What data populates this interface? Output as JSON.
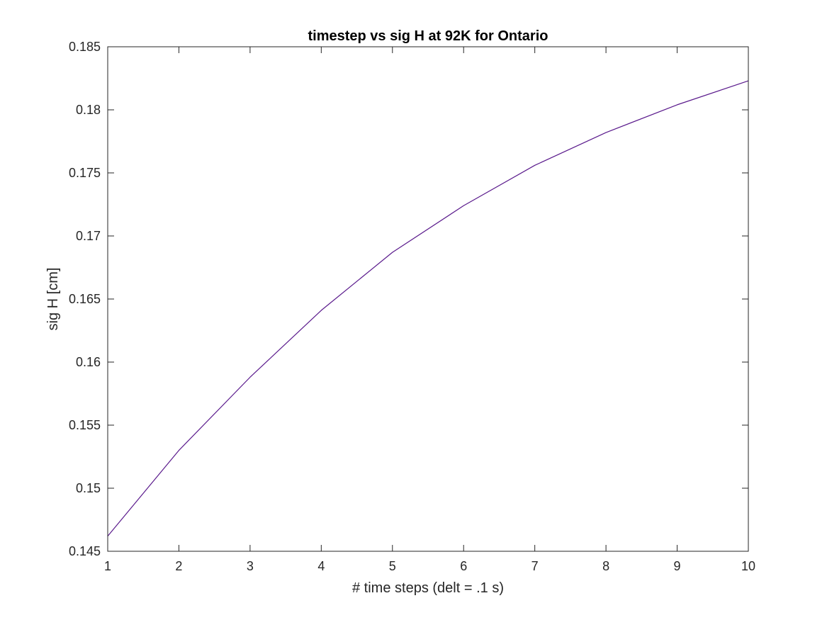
{
  "chart_data": {
    "type": "line",
    "title": "timestep vs sig H at 92K for Ontario",
    "xlabel": "# time steps (delt = .1 s)",
    "ylabel": "sig H [cm]",
    "xlim": [
      1,
      10
    ],
    "ylim": [
      0.145,
      0.185
    ],
    "xticks": [
      1,
      2,
      3,
      4,
      5,
      6,
      7,
      8,
      9,
      10
    ],
    "xtick_labels": [
      "1",
      "2",
      "3",
      "4",
      "5",
      "6",
      "7",
      "8",
      "9",
      "10"
    ],
    "yticks": [
      0.145,
      0.15,
      0.155,
      0.16,
      0.165,
      0.17,
      0.175,
      0.18,
      0.185
    ],
    "ytick_labels": [
      "0.145",
      "0.15",
      "0.155",
      "0.16",
      "0.165",
      "0.17",
      "0.175",
      "0.18",
      "0.185"
    ],
    "grid": false,
    "legend": "none",
    "colors": {
      "line": "#5a1a8c",
      "axes": "#262626",
      "background": "#ffffff"
    },
    "series": [
      {
        "x": [
          1,
          2,
          3,
          4,
          5,
          6,
          7,
          8,
          9,
          10
        ],
        "values": [
          0.1462,
          0.153,
          0.1588,
          0.1641,
          0.1687,
          0.1724,
          0.1756,
          0.1782,
          0.1804,
          0.1823
        ]
      }
    ]
  }
}
